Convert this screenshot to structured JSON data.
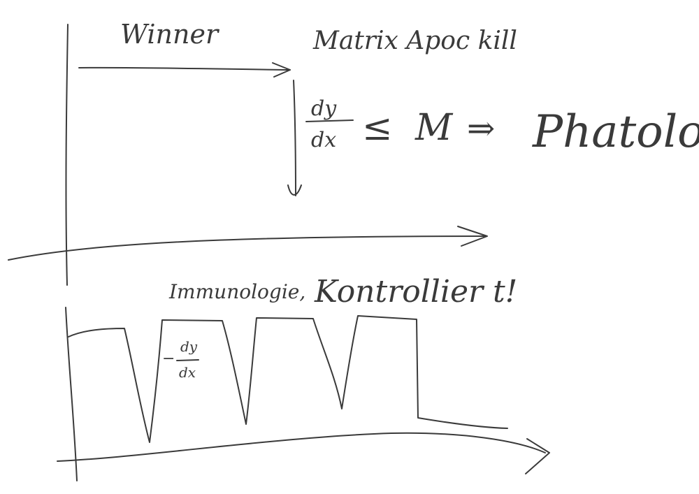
{
  "labels": {
    "winner": "Winner",
    "matrix": "Matrix Apoc kill",
    "dy": "dy",
    "dx": "dx",
    "leq": "≤",
    "m": "M",
    "implies": "⇒",
    "pathology": "Phatolog",
    "immunology": "Immunologie,",
    "controlled": "Kontrollier t!",
    "neg": "−",
    "dy2": "dy",
    "dx2": "dx"
  },
  "colors": {
    "ink": "#3a3a3a",
    "background": "#ffffff"
  }
}
